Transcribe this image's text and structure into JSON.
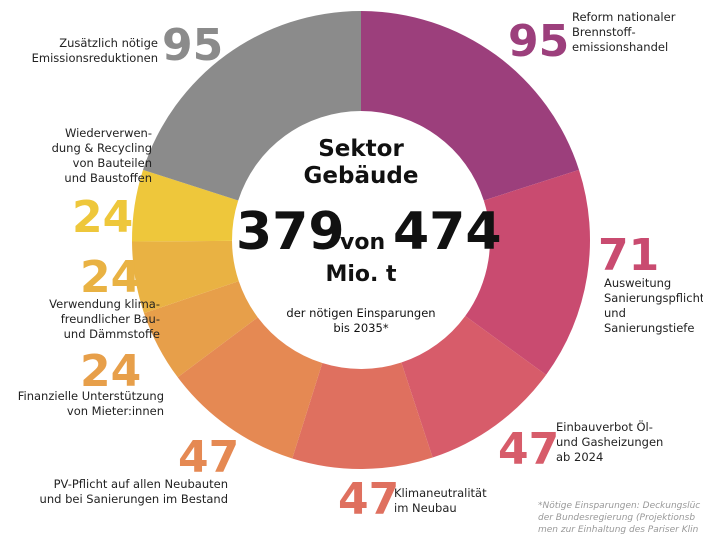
{
  "chart_data": {
    "type": "donut",
    "categories": [
      "Reform nationaler\nBrennstoff-\nemissionshandel",
      "Ausweitung\nSanierungspflicht\nund\nSanierungstiefe",
      "Einbauverbot Öl-\nund Gasheizungen\nab 2024",
      "Klimaneutralität\nim Neubau",
      "PV-Pflicht auf allen Neubauten\nund bei Sanierungen im Bestand",
      "Finanzielle Unterstützung\nvon Mieter:innen",
      "Verwendung klima-\nfreundlicher Bau-\nund Dämmstoffe",
      "Wiederverwen-\ndung & Recycling\nvon Bauteilen\nund Baustoffen",
      "Zusätzlich nötige\nEmissionsreduktionen"
    ],
    "values": [
      95,
      71,
      47,
      47,
      47,
      24,
      24,
      24,
      95
    ],
    "colors": [
      "#9c3f7c",
      "#c94b70",
      "#d75c6a",
      "#df705f",
      "#e58953",
      "#e79f4a",
      "#e9b243",
      "#eec73b",
      "#8b8b8b"
    ],
    "center": {
      "title": "Sektor\nGebäude",
      "value": 379,
      "connector": "von",
      "total": 474,
      "unit": "Mio. t",
      "subtitle": "der nötigen Einsparungen\nbis 2035*"
    },
    "footnote": "*Nötige Einsparungen: Deckungslüc\nder Bundesregierung (Projektionsb\nmen zur Einhaltung des Pariser Klin"
  }
}
